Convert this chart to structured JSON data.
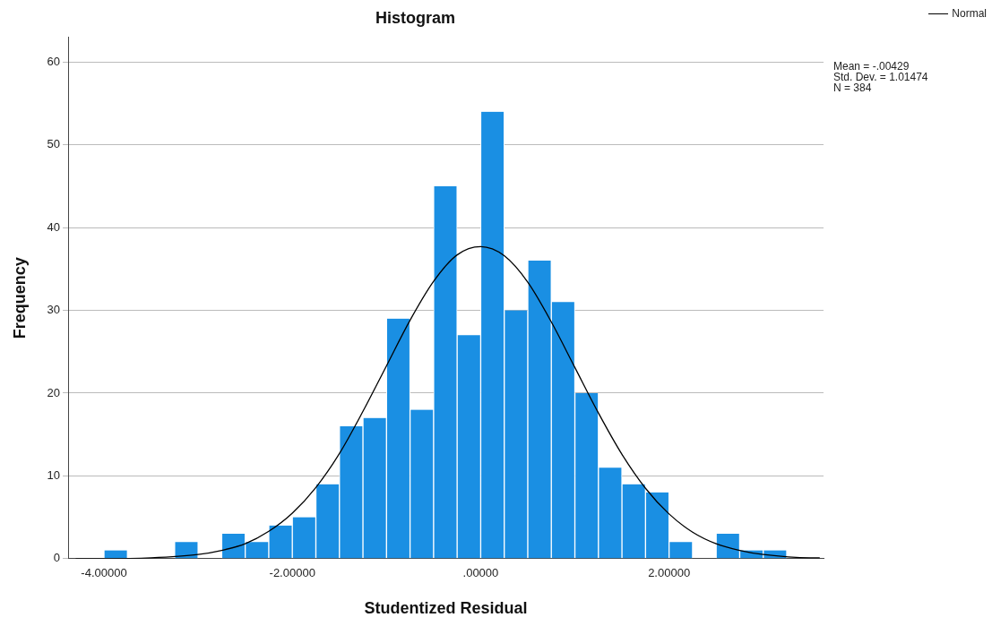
{
  "chart_data": {
    "type": "histogram",
    "title": "Histogram",
    "xlabel": "Studentized Residual",
    "ylabel": "Frequency",
    "bins": [
      -4,
      -3.75,
      -3.5,
      -3.25,
      -3,
      -2.75,
      -2.5,
      -2.25,
      -2,
      -1.75,
      -1.5,
      -1.25,
      -1,
      -0.75,
      -0.5,
      -0.25,
      0,
      0.25,
      0.5,
      0.75,
      1,
      1.25,
      1.5,
      1.75,
      2,
      2.25,
      2.5,
      2.75,
      3,
      3.25
    ],
    "series": [
      {
        "type": "histogram",
        "color": "#1a8fe3",
        "values": [
          1,
          0,
          0,
          2,
          0,
          3,
          2,
          4,
          5,
          9,
          16,
          17,
          29,
          18,
          45,
          27,
          54,
          30,
          36,
          31,
          20,
          11,
          9,
          8,
          2,
          0,
          3,
          1,
          1
        ]
      },
      {
        "type": "line",
        "name": "Normal",
        "color": "#000000",
        "x": [
          -4.3,
          -4,
          -3.5,
          -3,
          -2.75,
          -2.5,
          -2.25,
          -2,
          -1.75,
          -1.5,
          -1.25,
          -1,
          -0.75,
          -0.5,
          -0.25,
          0,
          0.25,
          0.5,
          0.75,
          1,
          1.25,
          1.5,
          1.75,
          2,
          2.25,
          2.5,
          2.75,
          3,
          3.5,
          3.6
        ],
        "values": [
          0,
          0,
          0.1,
          0.5,
          1,
          1.8,
          3.3,
          5.5,
          8.6,
          12.7,
          17.8,
          23.3,
          28.8,
          33.5,
          36.7,
          37.7,
          36.6,
          33.4,
          28.6,
          23.1,
          17.6,
          12.6,
          8.5,
          5.4,
          3.2,
          1.8,
          1,
          0.5,
          0.1,
          0.1
        ]
      }
    ],
    "xlim": [
      -4.38,
      3.64
    ],
    "xticks": [
      {
        "value": -4,
        "label": "-4.00000"
      },
      {
        "value": -2,
        "label": "-2.00000"
      },
      {
        "value": 0,
        "label": ".00000"
      },
      {
        "value": 2,
        "label": "2.00000"
      }
    ],
    "ylim": [
      0,
      63
    ],
    "yticks": [
      0,
      10,
      20,
      30,
      40,
      50,
      60
    ],
    "grid": "y",
    "legend": "top right",
    "marker": "none",
    "annotations": [
      "Mean = -.00429",
      "Std. Dev. = 1.01474",
      "N = 384"
    ]
  }
}
